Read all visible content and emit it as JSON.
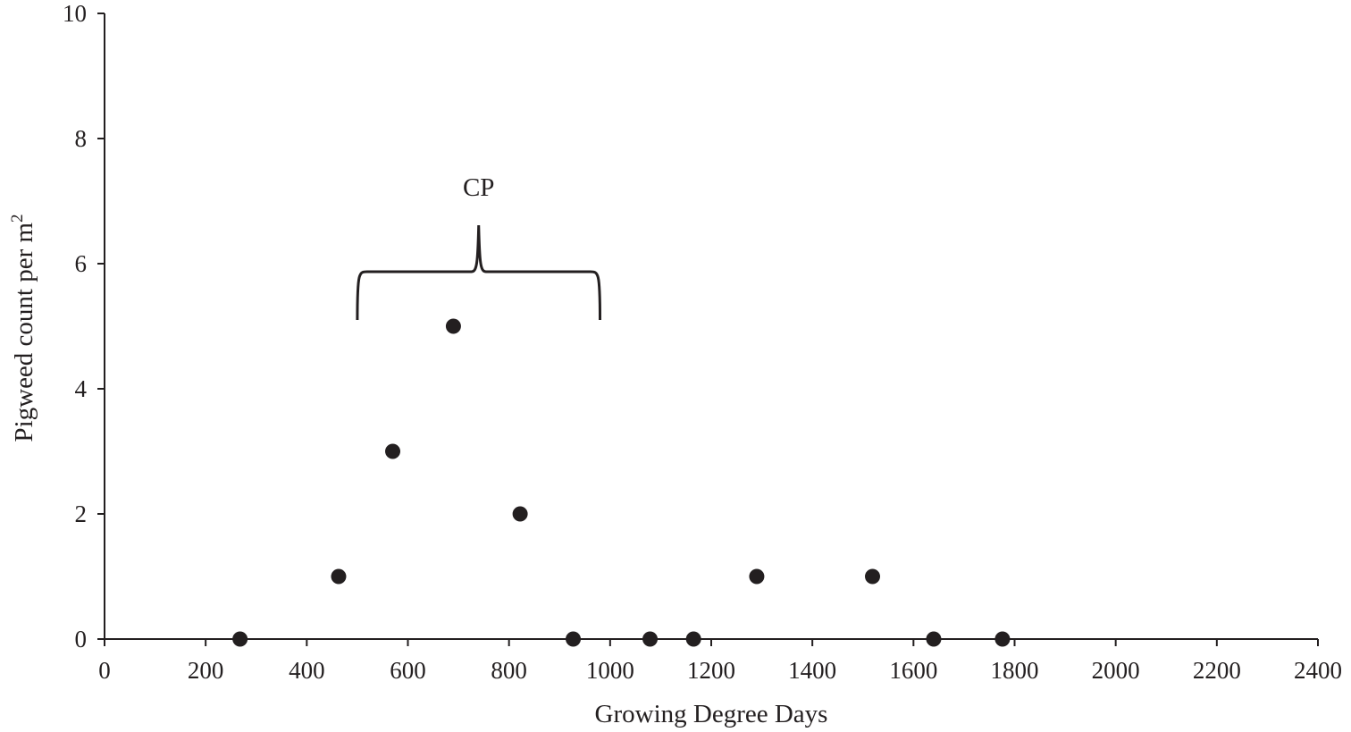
{
  "chart_data": {
    "type": "scatter",
    "title": "",
    "xlabel": "Growing Degree Days",
    "ylabel": "Pigweed count per m",
    "ylabel_superscript": "2",
    "xlim": [
      0,
      2400
    ],
    "ylim": [
      0,
      10
    ],
    "x_ticks": [
      0,
      200,
      400,
      600,
      800,
      1000,
      1200,
      1400,
      1600,
      1800,
      2000,
      2200,
      2400
    ],
    "y_ticks": [
      0,
      2,
      4,
      6,
      8,
      10
    ],
    "grid": false,
    "series": [
      {
        "points": [
          {
            "x": 268,
            "y": 0
          },
          {
            "x": 463,
            "y": 1
          },
          {
            "x": 570,
            "y": 3
          },
          {
            "x": 690,
            "y": 5
          },
          {
            "x": 822,
            "y": 2
          },
          {
            "x": 927,
            "y": 0
          },
          {
            "x": 1079,
            "y": 0
          },
          {
            "x": 1165,
            "y": 0
          },
          {
            "x": 1290,
            "y": 1
          },
          {
            "x": 1519,
            "y": 1
          },
          {
            "x": 1640,
            "y": 0
          },
          {
            "x": 1776,
            "y": 0
          }
        ]
      }
    ],
    "annotations": [
      {
        "text": "CP",
        "type": "brace",
        "x_start": 500,
        "x_end": 980,
        "y": 5.1
      }
    ]
  }
}
